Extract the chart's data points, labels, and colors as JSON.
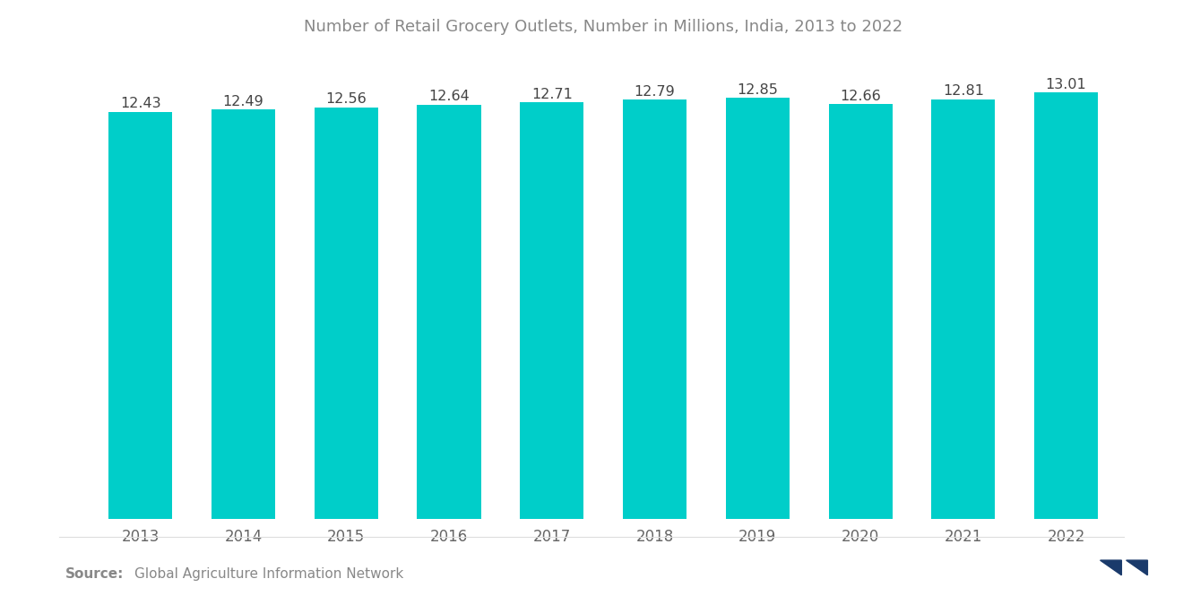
{
  "title": "Number of Retail Grocery Outlets, Number in Millions, India, 2013 to 2022",
  "years": [
    2013,
    2014,
    2015,
    2016,
    2017,
    2018,
    2019,
    2020,
    2021,
    2022
  ],
  "values": [
    12.43,
    12.49,
    12.56,
    12.64,
    12.71,
    12.79,
    12.85,
    12.66,
    12.81,
    13.01
  ],
  "bar_color": "#00CEC9",
  "background_color": "#ffffff",
  "title_color": "#888888",
  "label_color": "#444444",
  "tick_color": "#666666",
  "source_bold": "Source:",
  "source_text": "Global Agriculture Information Network",
  "source_color": "#888888",
  "ylim_min": 0,
  "ylim_max": 14.2,
  "bar_width": 0.62,
  "title_fontsize": 13,
  "label_fontsize": 11.5,
  "tick_fontsize": 12,
  "source_fontsize": 11
}
